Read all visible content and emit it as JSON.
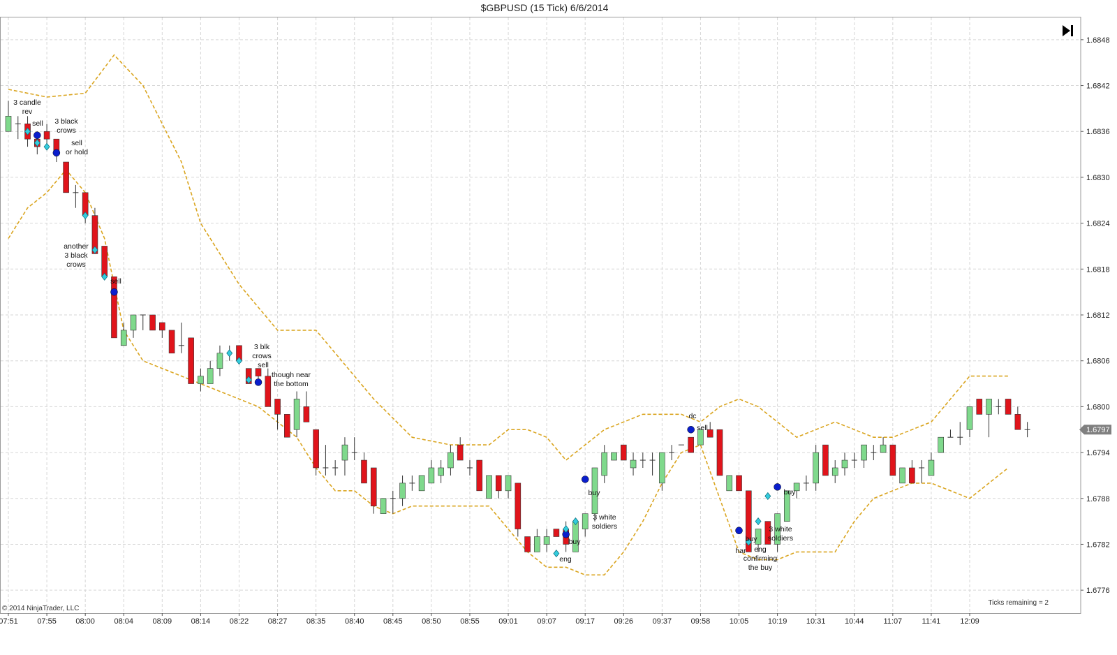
{
  "title": "$GBPUSD (15 Tick)  6/6/2014",
  "copyright": "© 2014 NinjaTrader, LLC",
  "ticks_remaining": "Ticks remaining = 2",
  "colors": {
    "up": "#7fd98c",
    "down": "#e0141b",
    "band": "#daa520",
    "signal_dot": "#0a1ecc",
    "signal_diamond": "#33ccdd",
    "price_tag": "#808080"
  },
  "icons": {
    "scroll_end": "skip-to-end-icon"
  },
  "chart_data": {
    "type": "candlestick",
    "instrument": "$GBPUSD",
    "period": "15 Tick",
    "date": "6/6/2014",
    "ylim": [
      1.6773,
      1.6851
    ],
    "y_ticks": [
      "1.6848",
      "1.6842",
      "1.6836",
      "1.6830",
      "1.6824",
      "1.6818",
      "1.6812",
      "1.6806",
      "1.6800",
      "1.6794",
      "1.6788",
      "1.6782",
      "1.6776"
    ],
    "last_price": "1.6797",
    "x_ticks": [
      {
        "i": 0,
        "label": "07:51"
      },
      {
        "i": 4,
        "label": "07:55"
      },
      {
        "i": 8,
        "label": "08:00"
      },
      {
        "i": 12,
        "label": "08:04"
      },
      {
        "i": 16,
        "label": "08:09"
      },
      {
        "i": 20,
        "label": "08:14"
      },
      {
        "i": 24,
        "label": "08:22"
      },
      {
        "i": 28,
        "label": "08:27"
      },
      {
        "i": 32,
        "label": "08:35"
      },
      {
        "i": 36,
        "label": "08:40"
      },
      {
        "i": 40,
        "label": "08:45"
      },
      {
        "i": 44,
        "label": "08:50"
      },
      {
        "i": 48,
        "label": "08:55"
      },
      {
        "i": 52,
        "label": "09:01"
      },
      {
        "i": 56,
        "label": "09:07"
      },
      {
        "i": 60,
        "label": "09:17"
      },
      {
        "i": 64,
        "label": "09:26"
      },
      {
        "i": 68,
        "label": "09:37"
      },
      {
        "i": 72,
        "label": "09:58"
      },
      {
        "i": 76,
        "label": "10:05"
      },
      {
        "i": 80,
        "label": "10:19"
      },
      {
        "i": 84,
        "label": "10:31"
      },
      {
        "i": 88,
        "label": "10:44"
      },
      {
        "i": 92,
        "label": "11:07"
      },
      {
        "i": 96,
        "label": "11:41"
      },
      {
        "i": 100,
        "label": "12:09"
      }
    ],
    "candles": [
      [
        1.6836,
        1.684,
        1.6836,
        1.6838
      ],
      [
        1.6837,
        1.6838,
        1.6835,
        1.6837
      ],
      [
        1.6837,
        1.6838,
        1.6834,
        1.6835
      ],
      [
        1.6835,
        1.6836,
        1.6833,
        1.6834
      ],
      [
        1.6836,
        1.6837,
        1.6834,
        1.6835
      ],
      [
        1.6835,
        1.6835,
        1.6832,
        1.6833
      ],
      [
        1.6832,
        1.6832,
        1.6828,
        1.6828
      ],
      [
        1.6828,
        1.6829,
        1.6826,
        1.6828
      ],
      [
        1.6828,
        1.6828,
        1.6824,
        1.6825
      ],
      [
        1.6825,
        1.6826,
        1.682,
        1.682
      ],
      [
        1.6821,
        1.6821,
        1.6817,
        1.6817
      ],
      [
        1.6817,
        1.6817,
        1.6809,
        1.6809
      ],
      [
        1.6808,
        1.6811,
        1.6808,
        1.681
      ],
      [
        1.681,
        1.6812,
        1.6809,
        1.6812
      ],
      [
        1.6812,
        1.6812,
        1.681,
        1.6812
      ],
      [
        1.6812,
        1.6812,
        1.681,
        1.681
      ],
      [
        1.6811,
        1.6811,
        1.6809,
        1.681
      ],
      [
        1.681,
        1.681,
        1.6807,
        1.6807
      ],
      [
        1.6808,
        1.6811,
        1.6807,
        1.6808
      ],
      [
        1.6809,
        1.6809,
        1.6803,
        1.6803
      ],
      [
        1.6803,
        1.6805,
        1.6802,
        1.6804
      ],
      [
        1.6803,
        1.6806,
        1.6803,
        1.6805
      ],
      [
        1.6805,
        1.6808,
        1.6804,
        1.6807
      ],
      [
        1.6807,
        1.6808,
        1.6806,
        1.6807
      ],
      [
        1.6808,
        1.6808,
        1.6806,
        1.6806
      ],
      [
        1.6805,
        1.6805,
        1.6803,
        1.6803
      ],
      [
        1.6805,
        1.6805,
        1.6803,
        1.6804
      ],
      [
        1.6804,
        1.6805,
        1.68,
        1.68
      ],
      [
        1.6801,
        1.6801,
        1.6797,
        1.6799
      ],
      [
        1.6799,
        1.6799,
        1.6796,
        1.6796
      ],
      [
        1.6797,
        1.6802,
        1.6796,
        1.6801
      ],
      [
        1.68,
        1.6802,
        1.6798,
        1.6798
      ],
      [
        1.6797,
        1.6797,
        1.6791,
        1.6792
      ],
      [
        1.6792,
        1.6795,
        1.6791,
        1.6792
      ],
      [
        1.6792,
        1.6793,
        1.6791,
        1.6792
      ],
      [
        1.6793,
        1.6796,
        1.6791,
        1.6795
      ],
      [
        1.6794,
        1.6796,
        1.6793,
        1.6794
      ],
      [
        1.6793,
        1.6794,
        1.679,
        1.679
      ],
      [
        1.6792,
        1.6792,
        1.6786,
        1.6787
      ],
      [
        1.6786,
        1.6788,
        1.6786,
        1.6788
      ],
      [
        1.6788,
        1.6789,
        1.6786,
        1.6788
      ],
      [
        1.6788,
        1.6791,
        1.6787,
        1.679
      ],
      [
        1.679,
        1.6791,
        1.6789,
        1.679
      ],
      [
        1.6789,
        1.6791,
        1.6789,
        1.6791
      ],
      [
        1.679,
        1.6793,
        1.679,
        1.6792
      ],
      [
        1.6791,
        1.6793,
        1.679,
        1.6792
      ],
      [
        1.6792,
        1.6795,
        1.6791,
        1.6794
      ],
      [
        1.6795,
        1.6796,
        1.6793,
        1.6793
      ],
      [
        1.6792,
        1.6793,
        1.6791,
        1.6792
      ],
      [
        1.6793,
        1.6793,
        1.6789,
        1.6789
      ],
      [
        1.6788,
        1.6791,
        1.6788,
        1.6791
      ],
      [
        1.6791,
        1.6791,
        1.6788,
        1.6789
      ],
      [
        1.6789,
        1.6791,
        1.6788,
        1.6791
      ],
      [
        1.679,
        1.679,
        1.6783,
        1.6784
      ],
      [
        1.6783,
        1.6783,
        1.6781,
        1.6781
      ],
      [
        1.6781,
        1.6784,
        1.6781,
        1.6783
      ],
      [
        1.6782,
        1.6784,
        1.6781,
        1.6783
      ],
      [
        1.6784,
        1.6784,
        1.6783,
        1.6783
      ],
      [
        1.6784,
        1.6785,
        1.6781,
        1.6782
      ],
      [
        1.6781,
        1.6785,
        1.6781,
        1.6785
      ],
      [
        1.6784,
        1.6786,
        1.6783,
        1.6786
      ],
      [
        1.6786,
        1.6792,
        1.6785,
        1.6792
      ],
      [
        1.6791,
        1.6795,
        1.679,
        1.6794
      ],
      [
        1.6793,
        1.6794,
        1.6793,
        1.6794
      ],
      [
        1.6795,
        1.6795,
        1.6793,
        1.6793
      ],
      [
        1.6792,
        1.6794,
        1.6791,
        1.6793
      ],
      [
        1.6793,
        1.6794,
        1.6792,
        1.6793
      ],
      [
        1.6793,
        1.6794,
        1.6791,
        1.6793
      ],
      [
        1.679,
        1.6794,
        1.6789,
        1.6794
      ],
      [
        1.6794,
        1.6795,
        1.6793,
        1.6794
      ],
      [
        1.6795,
        1.6795,
        1.6795,
        1.6795
      ],
      [
        1.6796,
        1.6796,
        1.6794,
        1.6794
      ],
      [
        1.6795,
        1.6797,
        1.6795,
        1.6797
      ],
      [
        1.6797,
        1.6798,
        1.6796,
        1.6796
      ],
      [
        1.6797,
        1.6797,
        1.6791,
        1.6791
      ],
      [
        1.6789,
        1.6791,
        1.6789,
        1.6791
      ],
      [
        1.6791,
        1.6791,
        1.6789,
        1.6789
      ],
      [
        1.6789,
        1.6789,
        1.6781,
        1.6781
      ],
      [
        1.6782,
        1.6784,
        1.6781,
        1.6784
      ],
      [
        1.6785,
        1.6785,
        1.6782,
        1.6782
      ],
      [
        1.6782,
        1.6786,
        1.6781,
        1.6786
      ],
      [
        1.6785,
        1.6789,
        1.6785,
        1.6789
      ],
      [
        1.6789,
        1.679,
        1.6788,
        1.679
      ],
      [
        1.679,
        1.6791,
        1.6789,
        1.679
      ],
      [
        1.679,
        1.6795,
        1.6789,
        1.6794
      ],
      [
        1.6795,
        1.6795,
        1.6791,
        1.6791
      ],
      [
        1.6791,
        1.6793,
        1.679,
        1.6792
      ],
      [
        1.6792,
        1.6794,
        1.6791,
        1.6793
      ],
      [
        1.6793,
        1.6794,
        1.6792,
        1.6793
      ],
      [
        1.6793,
        1.6795,
        1.6792,
        1.6795
      ],
      [
        1.6794,
        1.6795,
        1.6793,
        1.6794
      ],
      [
        1.6794,
        1.6796,
        1.6794,
        1.6795
      ],
      [
        1.6795,
        1.6795,
        1.6791,
        1.6791
      ],
      [
        1.679,
        1.6792,
        1.679,
        1.6792
      ],
      [
        1.6792,
        1.6793,
        1.679,
        1.679
      ],
      [
        1.6792,
        1.6793,
        1.679,
        1.6792
      ],
      [
        1.6791,
        1.6794,
        1.6791,
        1.6793
      ],
      [
        1.6794,
        1.6796,
        1.6794,
        1.6796
      ],
      [
        1.6796,
        1.6797,
        1.6796,
        1.6796
      ],
      [
        1.6796,
        1.6798,
        1.6795,
        1.6796
      ],
      [
        1.6797,
        1.68,
        1.6796,
        1.68
      ],
      [
        1.6801,
        1.6801,
        1.6799,
        1.6799
      ],
      [
        1.6799,
        1.6801,
        1.6796,
        1.6801
      ],
      [
        1.68,
        1.6801,
        1.6799,
        1.68
      ],
      [
        1.6801,
        1.6801,
        1.6799,
        1.6799
      ],
      [
        1.6799,
        1.68,
        1.6797,
        1.6797
      ],
      [
        1.6797,
        1.6798,
        1.6796,
        1.6797
      ]
    ],
    "band_upper": [
      [
        0,
        1.68415
      ],
      [
        4,
        1.68405
      ],
      [
        8,
        1.6841
      ],
      [
        11,
        1.6846
      ],
      [
        14,
        1.6842
      ],
      [
        18,
        1.6832
      ],
      [
        20,
        1.6824
      ],
      [
        24,
        1.6816
      ],
      [
        26,
        1.6813
      ],
      [
        28,
        1.681
      ],
      [
        30,
        1.681
      ],
      [
        32,
        1.681
      ],
      [
        34,
        1.6807
      ],
      [
        38,
        1.6801
      ],
      [
        42,
        1.6796
      ],
      [
        46,
        1.6795
      ],
      [
        50,
        1.6795
      ],
      [
        52,
        1.6797
      ],
      [
        54,
        1.6797
      ],
      [
        56,
        1.6796
      ],
      [
        58,
        1.6793
      ],
      [
        60,
        1.6795
      ],
      [
        62,
        1.6797
      ],
      [
        64,
        1.6798
      ],
      [
        66,
        1.6799
      ],
      [
        68,
        1.6799
      ],
      [
        70,
        1.6799
      ],
      [
        72,
        1.6798
      ],
      [
        74,
        1.68
      ],
      [
        76,
        1.6801
      ],
      [
        78,
        1.68
      ],
      [
        80,
        1.6798
      ],
      [
        82,
        1.6796
      ],
      [
        84,
        1.6797
      ],
      [
        86,
        1.6798
      ],
      [
        88,
        1.6797
      ],
      [
        90,
        1.6796
      ],
      [
        92,
        1.6796
      ],
      [
        94,
        1.6797
      ],
      [
        96,
        1.6798
      ],
      [
        98,
        1.6801
      ],
      [
        100,
        1.6804
      ],
      [
        102,
        1.6804
      ],
      [
        104,
        1.6804
      ]
    ],
    "band_lower": [
      [
        0,
        1.6822
      ],
      [
        2,
        1.6826
      ],
      [
        4,
        1.6828
      ],
      [
        6,
        1.6831
      ],
      [
        8,
        1.6828
      ],
      [
        10,
        1.6822
      ],
      [
        12,
        1.681
      ],
      [
        14,
        1.6806
      ],
      [
        16,
        1.6805
      ],
      [
        18,
        1.6804
      ],
      [
        20,
        1.6803
      ],
      [
        22,
        1.6802
      ],
      [
        24,
        1.6801
      ],
      [
        26,
        1.68
      ],
      [
        28,
        1.6798
      ],
      [
        30,
        1.6796
      ],
      [
        32,
        1.6792
      ],
      [
        34,
        1.6789
      ],
      [
        36,
        1.6789
      ],
      [
        38,
        1.6787
      ],
      [
        40,
        1.6786
      ],
      [
        42,
        1.6787
      ],
      [
        44,
        1.6787
      ],
      [
        46,
        1.6787
      ],
      [
        48,
        1.6787
      ],
      [
        50,
        1.6787
      ],
      [
        52,
        1.6784
      ],
      [
        54,
        1.6781
      ],
      [
        56,
        1.6779
      ],
      [
        58,
        1.6779
      ],
      [
        60,
        1.6778
      ],
      [
        62,
        1.6778
      ],
      [
        64,
        1.6781
      ],
      [
        66,
        1.6785
      ],
      [
        68,
        1.679
      ],
      [
        70,
        1.6794
      ],
      [
        72,
        1.6795
      ],
      [
        74,
        1.6788
      ],
      [
        76,
        1.6781
      ],
      [
        78,
        1.678
      ],
      [
        80,
        1.678
      ],
      [
        82,
        1.6781
      ],
      [
        84,
        1.6781
      ],
      [
        86,
        1.6781
      ],
      [
        88,
        1.6785
      ],
      [
        90,
        1.6788
      ],
      [
        92,
        1.6789
      ],
      [
        94,
        1.679
      ],
      [
        96,
        1.679
      ],
      [
        98,
        1.6789
      ],
      [
        100,
        1.6788
      ],
      [
        102,
        1.679
      ],
      [
        104,
        1.6792
      ]
    ],
    "signals": [
      {
        "i": 2,
        "y": 1.6836,
        "shape": "diamond"
      },
      {
        "i": 3,
        "y": 1.68355,
        "shape": "dot"
      },
      {
        "i": 3,
        "y": 1.68345,
        "shape": "diamond"
      },
      {
        "i": 4,
        "y": 1.6834,
        "shape": "diamond"
      },
      {
        "i": 5,
        "y": 1.68332,
        "shape": "dot"
      },
      {
        "i": 8,
        "y": 1.6825,
        "shape": "diamond"
      },
      {
        "i": 9,
        "y": 1.68205,
        "shape": "diamond"
      },
      {
        "i": 10,
        "y": 1.6817,
        "shape": "diamond"
      },
      {
        "i": 11,
        "y": 1.6815,
        "shape": "dot"
      },
      {
        "i": 23,
        "y": 1.6807,
        "shape": "diamond"
      },
      {
        "i": 24,
        "y": 1.6806,
        "shape": "diamond"
      },
      {
        "i": 25,
        "y": 1.68035,
        "shape": "diamond"
      },
      {
        "i": 26,
        "y": 1.68032,
        "shape": "dot"
      },
      {
        "i": 57,
        "y": 1.67808,
        "shape": "diamond"
      },
      {
        "i": 58,
        "y": 1.67833,
        "shape": "dot"
      },
      {
        "i": 58,
        "y": 1.6784,
        "shape": "diamond"
      },
      {
        "i": 59,
        "y": 1.6785,
        "shape": "diamond"
      },
      {
        "i": 60,
        "y": 1.67905,
        "shape": "dot"
      },
      {
        "i": 71,
        "y": 1.6797,
        "shape": "dot"
      },
      {
        "i": 76,
        "y": 1.67838,
        "shape": "dot"
      },
      {
        "i": 77,
        "y": 1.67823,
        "shape": "diamond"
      },
      {
        "i": 78,
        "y": 1.6785,
        "shape": "diamond"
      },
      {
        "i": 79,
        "y": 1.67883,
        "shape": "diamond"
      },
      {
        "i": 80,
        "y": 1.67895,
        "shape": "dot"
      }
    ],
    "annotations": [
      {
        "text": "3 candle",
        "x": 39,
        "y": 146
      },
      {
        "text": "rev",
        "x": 39,
        "y": 159
      },
      {
        "text": "sell",
        "x": 54,
        "y": 176
      },
      {
        "text": "3 black",
        "x": 95,
        "y": 173
      },
      {
        "text": "crows",
        "x": 95,
        "y": 186
      },
      {
        "text": "sell",
        "x": 110,
        "y": 204
      },
      {
        "text": "or hold",
        "x": 110,
        "y": 217
      },
      {
        "text": "another",
        "x": 109,
        "y": 352
      },
      {
        "text": "3 black",
        "x": 109,
        "y": 365
      },
      {
        "text": "crows",
        "x": 109,
        "y": 378
      },
      {
        "text": "sell",
        "x": 166,
        "y": 402
      },
      {
        "text": "3 blk",
        "x": 375,
        "y": 496
      },
      {
        "text": "crows",
        "x": 375,
        "y": 509
      },
      {
        "text": "sell",
        "x": 377,
        "y": 522
      },
      {
        "text": "though near",
        "x": 417,
        "y": 536
      },
      {
        "text": "the bottom",
        "x": 417,
        "y": 549
      },
      {
        "text": "buy",
        "x": 851,
        "y": 705
      },
      {
        "text": "3 white",
        "x": 866,
        "y": 740
      },
      {
        "text": "soldiers",
        "x": 866,
        "y": 753
      },
      {
        "text": "buy",
        "x": 823,
        "y": 775
      },
      {
        "text": "eng",
        "x": 810,
        "y": 800
      },
      {
        "text": "dc",
        "x": 992,
        "y": 595
      },
      {
        "text": "sell",
        "x": 1006,
        "y": 612
      },
      {
        "text": "har",
        "x": 1061,
        "y": 788
      },
      {
        "text": "buy",
        "x": 1076,
        "y": 771
      },
      {
        "text": "eng",
        "x": 1089,
        "y": 786
      },
      {
        "text": "confirming",
        "x": 1089,
        "y": 799
      },
      {
        "text": "the buy",
        "x": 1089,
        "y": 812
      },
      {
        "text": "buy",
        "x": 1131,
        "y": 704
      },
      {
        "text": "3 white",
        "x": 1118,
        "y": 757
      },
      {
        "text": "soldiers",
        "x": 1118,
        "y": 770
      }
    ]
  }
}
